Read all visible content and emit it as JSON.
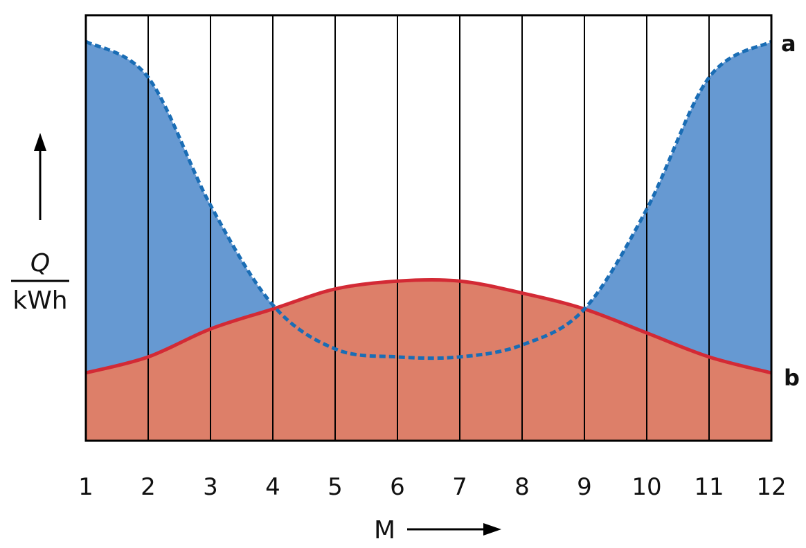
{
  "chart_data": {
    "type": "area",
    "title": "",
    "x": [
      1,
      2,
      3,
      4,
      5,
      6,
      7,
      8,
      9,
      10,
      11,
      12
    ],
    "xlabel": "M",
    "ylabel_numerator": "Q",
    "ylabel_denominator": "kWh",
    "xlim": [
      1,
      12
    ],
    "ylim": [
      0,
      100
    ],
    "grid": "vertical",
    "legend": "none",
    "series": [
      {
        "name": "a",
        "values": [
          100,
          91,
          59,
          34,
          23,
          21,
          21,
          24,
          33,
          58,
          91,
          100
        ],
        "style": "dashed",
        "color": "#1a6db5",
        "fill": "#6699d2"
      },
      {
        "name": "b",
        "values": [
          17,
          21,
          28,
          33,
          38,
          40,
          40,
          37,
          33,
          27,
          21,
          17
        ],
        "style": "solid",
        "color": "#d32a35",
        "fill": "#dd7f69"
      }
    ],
    "overlap_fill": "#edcc75",
    "gridline_color": "#000000"
  }
}
